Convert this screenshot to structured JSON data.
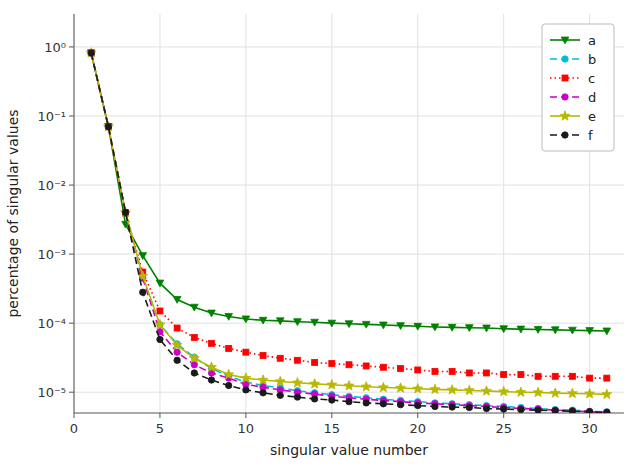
{
  "chart_data": {
    "type": "line",
    "xlabel": "singular value number",
    "ylabel": "percentage of singular values",
    "log": "y",
    "grid": true,
    "legend": "upper right",
    "xlim": [
      0,
      32
    ],
    "ylim": [
      5e-06,
      3.0
    ],
    "xticks": [
      0,
      5,
      10,
      15,
      20,
      25,
      30
    ],
    "yticks": [
      {
        "value": 1e-05,
        "label": "10⁻⁵"
      },
      {
        "value": 0.0001,
        "label": "10⁻⁴"
      },
      {
        "value": 0.001,
        "label": "10⁻³"
      },
      {
        "value": 0.01,
        "label": "10⁻²"
      },
      {
        "value": 0.1,
        "label": "10⁻¹"
      },
      {
        "value": 1.0,
        "label": "10⁰"
      }
    ],
    "x": [
      1,
      2,
      3,
      4,
      5,
      6,
      7,
      8,
      9,
      10,
      11,
      12,
      13,
      14,
      15,
      16,
      17,
      18,
      19,
      20,
      21,
      22,
      23,
      24,
      25,
      26,
      27,
      28,
      29,
      30,
      31
    ],
    "series": [
      {
        "name": "a",
        "color": "#008000",
        "line_style": "solid",
        "marker": "triangle_down",
        "values": [
          0.82,
          0.07,
          0.0027,
          0.00095,
          0.00038,
          0.00022,
          0.00017,
          0.00014,
          0.000125,
          0.000115,
          0.00011,
          0.000108,
          0.000105,
          0.000103,
          0.0001,
          9.8e-05,
          9.6e-05,
          9.4e-05,
          9.2e-05,
          9e-05,
          8.8e-05,
          8.7e-05,
          8.6e-05,
          8.5e-05,
          8.3e-05,
          8.2e-05,
          8.1e-05,
          8e-05,
          7.9e-05,
          7.8e-05,
          7.7e-05
        ]
      },
      {
        "name": "b",
        "color": "#00bcd4",
        "line_style": "dashed",
        "marker": "circle",
        "values": [
          0.82,
          0.07,
          0.004,
          0.00045,
          9.5e-05,
          5e-05,
          3.2e-05,
          2.2e-05,
          1.7e-05,
          1.4e-05,
          1.25e-05,
          1.15e-05,
          1.05e-05,
          9.8e-06,
          9.2e-06,
          8.7e-06,
          8.3e-06,
          7.9e-06,
          7.6e-06,
          7.3e-06,
          7e-06,
          6.8e-06,
          6.6e-06,
          6.4e-06,
          6.2e-06,
          6e-06,
          5.8e-06,
          5.6e-06,
          5.5e-06,
          5.3e-06,
          5.2e-06
        ]
      },
      {
        "name": "c",
        "color": "#ff0000",
        "line_style": "dotted",
        "marker": "square",
        "values": [
          0.82,
          0.07,
          0.004,
          0.00055,
          0.00015,
          8.5e-05,
          6.2e-05,
          5.1e-05,
          4.3e-05,
          3.8e-05,
          3.4e-05,
          3.1e-05,
          2.9e-05,
          2.7e-05,
          2.6e-05,
          2.5e-05,
          2.4e-05,
          2.3e-05,
          2.2e-05,
          2.1e-05,
          2e-05,
          2e-05,
          1.9e-05,
          1.9e-05,
          1.8e-05,
          1.8e-05,
          1.7e-05,
          1.7e-05,
          1.7e-05,
          1.6e-05,
          1.6e-05
        ]
      },
      {
        "name": "d",
        "color": "#cc00cc",
        "line_style": "dashed",
        "marker": "circle",
        "values": [
          0.82,
          0.07,
          0.004,
          0.00045,
          7.5e-05,
          3.8e-05,
          2.5e-05,
          1.9e-05,
          1.6e-05,
          1.3e-05,
          1.18e-05,
          1.08e-05,
          1e-05,
          9.4e-06,
          8.8e-06,
          8.3e-06,
          7.9e-06,
          7.6e-06,
          7.3e-06,
          7e-06,
          6.8e-06,
          6.6e-06,
          6.4e-06,
          6.2e-06,
          6e-06,
          5.8e-06,
          5.7e-06,
          5.5e-06,
          5.4e-06,
          5.2e-06,
          5.1e-06
        ]
      },
      {
        "name": "e",
        "color": "#b8b800",
        "line_style": "solid",
        "marker": "star",
        "values": [
          0.82,
          0.07,
          0.004,
          0.00048,
          9.5e-05,
          4.8e-05,
          3.1e-05,
          2.3e-05,
          1.8e-05,
          1.6e-05,
          1.5e-05,
          1.43e-05,
          1.37e-05,
          1.32e-05,
          1.28e-05,
          1.24e-05,
          1.2e-05,
          1.17e-05,
          1.15e-05,
          1.12e-05,
          1.1e-05,
          1.08e-05,
          1.06e-05,
          1.04e-05,
          1.02e-05,
          1e-05,
          9.9e-06,
          9.7e-06,
          9.6e-06,
          9.5e-06,
          9.3e-06
        ]
      },
      {
        "name": "f",
        "color": "#1a1a1a",
        "line_style": "dashed",
        "marker": "circle",
        "values": [
          0.82,
          0.07,
          0.004,
          0.00028,
          5.8e-05,
          2.9e-05,
          1.9e-05,
          1.5e-05,
          1.25e-05,
          1.08e-05,
          9.8e-06,
          9e-06,
          8.5e-06,
          8e-06,
          7.7e-06,
          7.3e-06,
          7e-06,
          6.8e-06,
          6.6e-06,
          6.4e-06,
          6.2e-06,
          6.1e-06,
          6e-06,
          5.8e-06,
          5.7e-06,
          5.6e-06,
          5.5e-06,
          5.4e-06,
          5.3e-06,
          5.2e-06,
          5.1e-06
        ]
      }
    ]
  }
}
